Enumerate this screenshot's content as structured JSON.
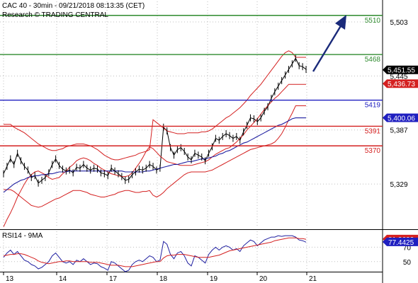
{
  "header": {
    "line1": "CAC 40 - 30min - 09/21/2018 08:13:35 (CET)",
    "line2": "Research © TRADING CENTRAL"
  },
  "rsi": {
    "label": "RSI14 - 9MA"
  },
  "colors": {
    "resistance": "#2e8b2e",
    "pivot": "#1f1fc0",
    "support": "#d42020",
    "price": "#000000",
    "bollinger": "#d42020",
    "ma": "#1f1fa0",
    "arrow": "#1a2a7a",
    "grid": "#bfbfbf"
  },
  "chart_data": [
    {
      "type": "line",
      "title": "CAC 40 - 30min - 09/21/2018 08:13:35 (CET)",
      "subtitle": "Research © TRADING CENTRAL",
      "x_ticks": [
        "13",
        "14",
        "17",
        "18",
        "19",
        "20",
        "21"
      ],
      "y_ticks": [
        5503,
        5445,
        5387,
        5329
      ],
      "ylim": [
        5282,
        5525
      ],
      "grid": true,
      "levels": [
        {
          "label": "5510",
          "value": 5510,
          "color": "#2e8b2e"
        },
        {
          "label": "5468",
          "value": 5468,
          "color": "#2e8b2e"
        },
        {
          "label": "5419",
          "value": 5419,
          "color": "#1f1fc0"
        },
        {
          "label": "5391",
          "value": 5391,
          "color": "#d42020"
        },
        {
          "label": "5370",
          "value": 5370,
          "color": "#d42020"
        }
      ],
      "value_tags": [
        {
          "label": "5,451.55",
          "value": 5451.55,
          "bg": "#000000"
        },
        {
          "label": "5,436.73",
          "value": 5436.73,
          "bg": "#d42020"
        },
        {
          "label": "5,400.06",
          "value": 5400.06,
          "bg": "#1f1fc0"
        }
      ],
      "series": [
        {
          "values": [
            5340,
            5348,
            5356,
            5350,
            5362,
            5354,
            5348,
            5344,
            5336,
            5338,
            5330,
            5333,
            5336,
            5341,
            5350,
            5356,
            5349,
            5345,
            5343,
            5344,
            5341,
            5347,
            5346,
            5350,
            5346,
            5344,
            5346,
            5345,
            5341,
            5340,
            5338,
            5346,
            5343,
            5340,
            5337,
            5333,
            5334,
            5339,
            5342,
            5345,
            5344,
            5346,
            5350,
            5348,
            5344,
            5346,
            5390,
            5386,
            5368,
            5360,
            5366,
            5368,
            5364,
            5358,
            5355,
            5362,
            5360,
            5358,
            5354,
            5362,
            5369,
            5378,
            5376,
            5380,
            5383,
            5381,
            5378,
            5380,
            5376,
            5385,
            5392,
            5400,
            5399,
            5396,
            5400,
            5407,
            5412,
            5421,
            5428,
            5434,
            5440,
            5446,
            5452,
            5458,
            5464,
            5456,
            5455,
            5452
          ]
        },
        {
          "values": [
            5283,
            5291,
            5298,
            5306,
            5315,
            5322,
            5329,
            5335,
            5339,
            5342,
            5343,
            5341,
            5339,
            5336,
            5334,
            5335,
            5336,
            5340,
            5343,
            5347,
            5350,
            5354,
            5356,
            5357,
            5356,
            5354,
            5351,
            5349,
            5346,
            5344,
            5342,
            5340,
            5339,
            5338,
            5337,
            5337,
            5338,
            5341,
            5346,
            5351,
            5357,
            5364,
            5369,
            5367,
            5363,
            5359,
            5356,
            5353,
            5352,
            5351,
            5350,
            5349,
            5349,
            5349,
            5349,
            5350,
            5351,
            5352,
            5353,
            5355,
            5358,
            5361,
            5363,
            5365,
            5367,
            5368,
            5371,
            5374,
            5378,
            5382,
            5387,
            5391,
            5395,
            5399,
            5404,
            5409,
            5413,
            5417,
            5421,
            5424,
            5428,
            5432,
            5436,
            5436,
            5436,
            5436,
            5436,
            5436
          ]
        },
        {
          "values": [
            5393,
            5393,
            5393,
            5390,
            5388,
            5386,
            5384,
            5381,
            5378,
            5375,
            5372,
            5370,
            5368,
            5366,
            5365,
            5365,
            5366,
            5367,
            5369,
            5370,
            5371,
            5372,
            5372,
            5372,
            5371,
            5370,
            5368,
            5366,
            5363,
            5360,
            5358,
            5356,
            5355,
            5355,
            5356,
            5357,
            5358,
            5359,
            5360,
            5362,
            5363,
            5364,
            5366,
            5398,
            5395,
            5392,
            5389,
            5386,
            5385,
            5384,
            5383,
            5383,
            5383,
            5384,
            5384,
            5384,
            5384,
            5385,
            5385,
            5386,
            5388,
            5391,
            5394,
            5397,
            5400,
            5402,
            5405,
            5408,
            5411,
            5415,
            5419,
            5424,
            5428,
            5432,
            5436,
            5441,
            5446,
            5451,
            5456,
            5461,
            5466,
            5470,
            5472,
            5470,
            5465,
            5465,
            5465,
            5465
          ]
        },
        {
          "values": [
            5323,
            5323,
            5323,
            5321,
            5318,
            5315,
            5312,
            5309,
            5306,
            5305,
            5304,
            5305,
            5307,
            5309,
            5311,
            5313,
            5314,
            5316,
            5318,
            5320,
            5322,
            5322,
            5322,
            5321,
            5320,
            5318,
            5317,
            5316,
            5315,
            5315,
            5316,
            5317,
            5318,
            5320,
            5321,
            5322,
            5322,
            5321,
            5320,
            5320,
            5321,
            5321,
            5322,
            5317,
            5315,
            5317,
            5320,
            5324,
            5327,
            5330,
            5333,
            5336,
            5339,
            5341,
            5342,
            5342,
            5342,
            5342,
            5342,
            5343,
            5344,
            5346,
            5348,
            5350,
            5352,
            5354,
            5356,
            5358,
            5360,
            5362,
            5364,
            5366,
            5367,
            5368,
            5369,
            5370,
            5371,
            5372,
            5374,
            5378,
            5383,
            5390,
            5398,
            5405,
            5413,
            5413,
            5413,
            5413
          ]
        },
        {
          "values": [
            5320,
            5323,
            5326,
            5329,
            5331,
            5333,
            5334,
            5336,
            5337,
            5338,
            5338,
            5339,
            5339,
            5340,
            5340,
            5341,
            5342,
            5342,
            5342,
            5343,
            5343,
            5343,
            5343,
            5343,
            5343,
            5343,
            5343,
            5343,
            5343,
            5343,
            5343,
            5343,
            5343,
            5343,
            5343,
            5342,
            5342,
            5342,
            5342,
            5342,
            5342,
            5343,
            5343,
            5344,
            5345,
            5346,
            5347,
            5348,
            5349,
            5350,
            5350,
            5351,
            5352,
            5353,
            5353,
            5354,
            5355,
            5356,
            5356,
            5357,
            5358,
            5359,
            5361,
            5362,
            5364,
            5365,
            5367,
            5369,
            5371,
            5373,
            5374,
            5376,
            5378,
            5380,
            5382,
            5384,
            5386,
            5388,
            5390,
            5392,
            5393,
            5395,
            5397,
            5399,
            5400,
            5400,
            5400,
            5400
          ]
        }
      ]
    },
    {
      "type": "line",
      "title": "RSI14 - 9MA",
      "y_ticks": [
        70,
        50
      ],
      "value_tags": [
        {
          "label": "81.2622",
          "value": 81.2622,
          "bg": "#d42020"
        },
        {
          "label": "77.4425",
          "value": 77.4425,
          "bg": "#1f1fc0"
        }
      ],
      "series": [
        {
          "values": [
            56,
            62,
            66,
            60,
            64,
            58,
            52,
            50,
            46,
            44,
            40,
            42,
            46,
            50,
            58,
            62,
            56,
            50,
            48,
            50,
            46,
            52,
            50,
            54,
            50,
            46,
            48,
            47,
            43,
            41,
            38,
            50,
            48,
            44,
            40,
            36,
            38,
            46,
            50,
            52,
            50,
            54,
            58,
            56,
            50,
            52,
            78,
            74,
            60,
            54,
            62,
            64,
            58,
            48,
            44,
            58,
            56,
            52,
            48,
            60,
            66,
            70,
            66,
            70,
            72,
            70,
            66,
            68,
            64,
            72,
            76,
            80,
            78,
            72,
            76,
            80,
            82,
            84,
            84,
            86,
            85,
            86,
            86,
            86,
            84,
            80,
            79,
            77
          ]
        },
        {
          "values": [
            58,
            59,
            60,
            60,
            61,
            61,
            60,
            58,
            56,
            54,
            51,
            49,
            48,
            47,
            48,
            49,
            50,
            50,
            51,
            51,
            50,
            50,
            50,
            50,
            50,
            49,
            49,
            49,
            48,
            47,
            46,
            45,
            45,
            45,
            44,
            43,
            43,
            43,
            44,
            45,
            46,
            47,
            48,
            49,
            50,
            50,
            55,
            58,
            59,
            59,
            60,
            60,
            60,
            59,
            58,
            57,
            56,
            56,
            56,
            56,
            57,
            58,
            59,
            61,
            63,
            65,
            66,
            67,
            68,
            69,
            70,
            71,
            72,
            73,
            74,
            75,
            76,
            77,
            79,
            80,
            81,
            82,
            83,
            83,
            83,
            82,
            82,
            81
          ]
        }
      ]
    }
  ]
}
